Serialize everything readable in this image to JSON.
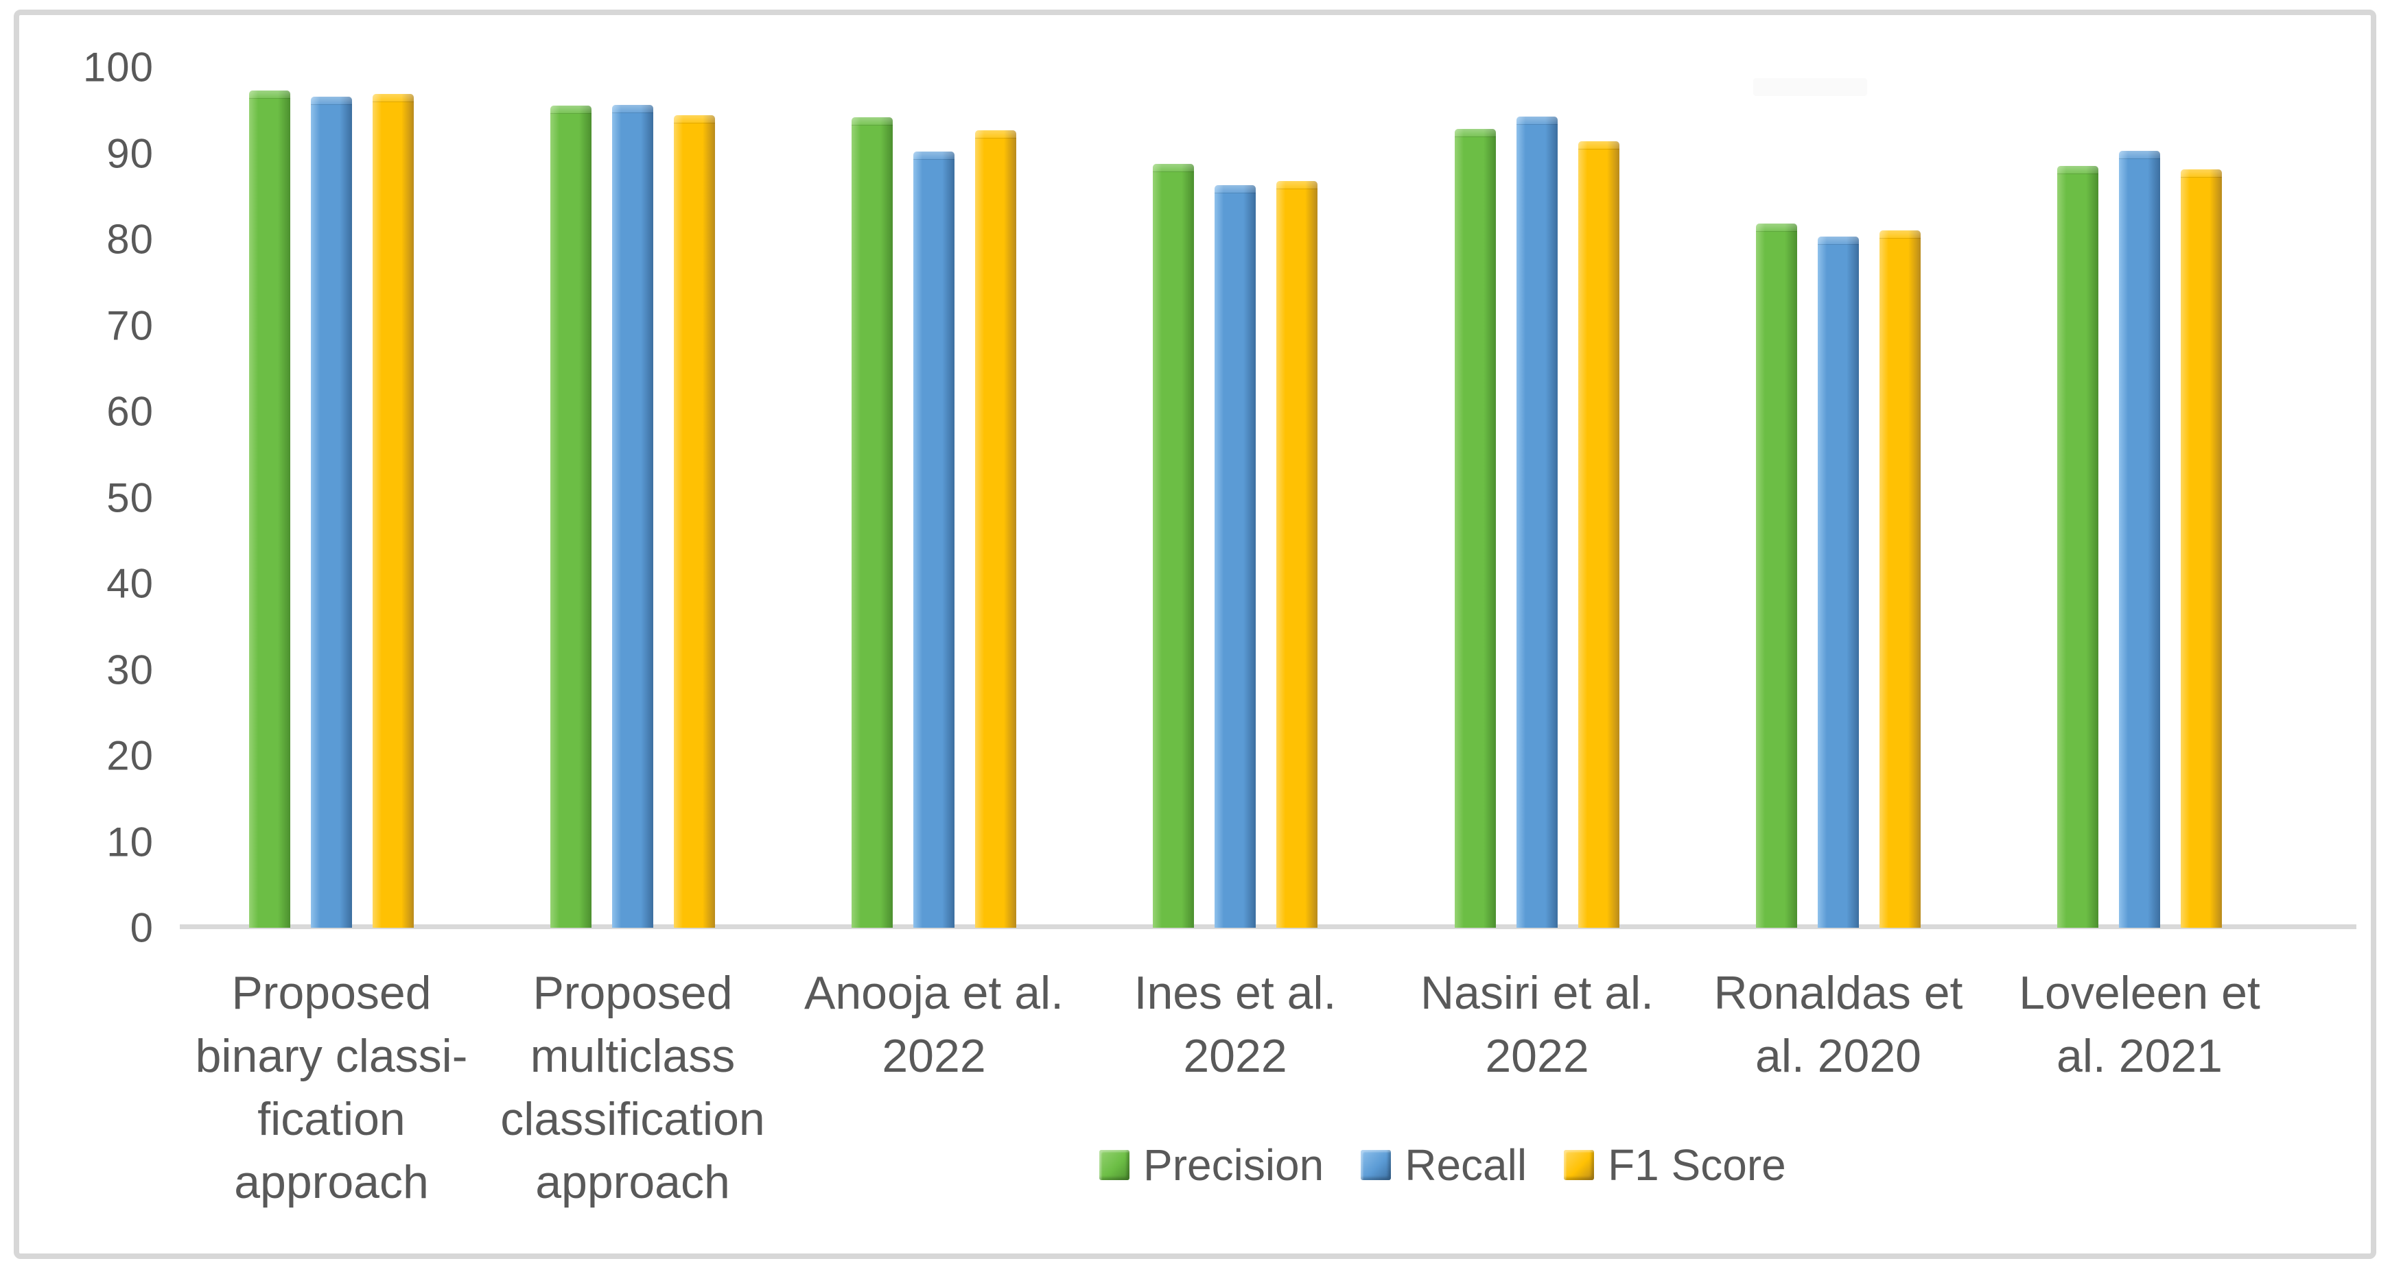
{
  "chart_data": {
    "type": "bar",
    "title": "",
    "xlabel": "",
    "ylabel": "",
    "ylim": [
      0,
      100
    ],
    "yticks": [
      0,
      10,
      20,
      30,
      40,
      50,
      60,
      70,
      80,
      90,
      100
    ],
    "grid": false,
    "legend_position": "bottom",
    "categories": [
      "Proposed binary classification approach",
      "Proposed multiclass classification approach",
      "Anooja et al. 2022",
      "Ines et al. 2022",
      "Nasiri et al. 2022",
      "Ronaldas et al. 2020",
      "Loveleen et al. 2021"
    ],
    "category_lines": [
      [
        "Proposed",
        "binary classi-",
        "fication",
        "approach"
      ],
      [
        "Proposed",
        "multiclass",
        "classification",
        "approach"
      ],
      [
        "Anooja et al.",
        "2022"
      ],
      [
        "Ines et al.",
        "2022"
      ],
      [
        "Nasiri et al.",
        "2022"
      ],
      [
        "Ronaldas et",
        "al. 2020"
      ],
      [
        "Loveleen et",
        "al. 2021"
      ]
    ],
    "series": [
      {
        "name": "Precision",
        "color": "#6CBE45",
        "color_light": "#96D373",
        "color_dark": "#4C8F2F",
        "values": [
          97.3,
          95.5,
          94.2,
          88.8,
          92.8,
          81.8,
          88.5
        ]
      },
      {
        "name": "Recall",
        "color": "#5B9BD5",
        "color_light": "#8FC1EC",
        "color_dark": "#3C6E9F",
        "values": [
          96.6,
          95.6,
          90.2,
          86.3,
          94.3,
          80.3,
          90.3
        ]
      },
      {
        "name": "F1 Score",
        "color": "#FFC103",
        "color_light": "#FFD75E",
        "color_dark": "#B88A1D",
        "values": [
          96.9,
          94.4,
          92.7,
          86.8,
          91.4,
          81.0,
          88.1
        ]
      }
    ]
  },
  "axis_style": {
    "text_color": "#595959",
    "line_color": "#D9D9D9"
  }
}
